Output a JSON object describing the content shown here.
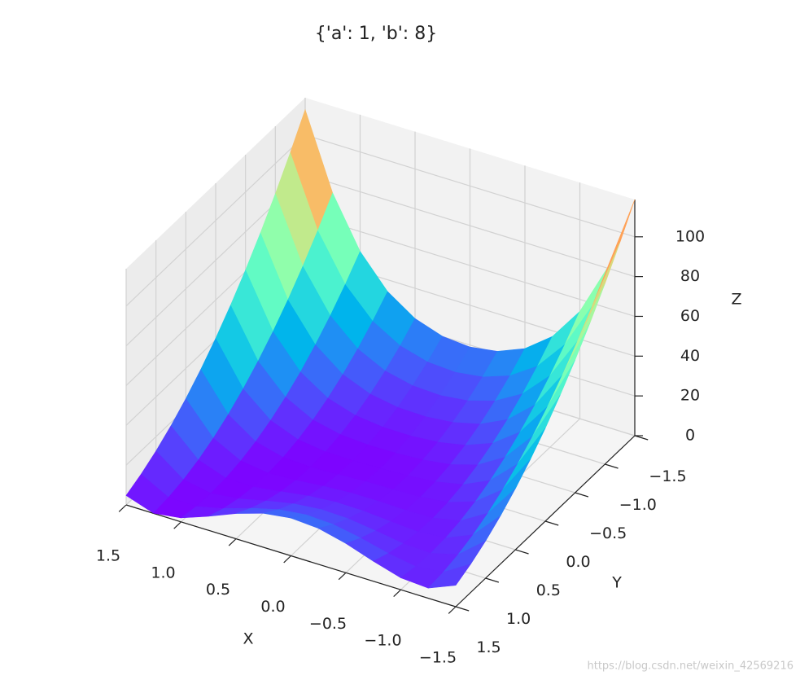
{
  "chart_data": {
    "type": "surface3d",
    "title": "{'a': 1, 'b': 8}",
    "xlabel": "X",
    "ylabel": "Y",
    "zlabel": "Z",
    "colormap": "rainbow",
    "grid": true,
    "x": [
      -1.5,
      -1.25,
      -1,
      -0.75,
      -0.5,
      -0.25,
      0,
      0.25,
      0.5,
      0.75,
      1,
      1.25,
      1.5
    ],
    "y": [
      -1.5,
      -1.25,
      -1,
      -0.75,
      -0.5,
      -0.25,
      0,
      0.25,
      0.5,
      0.75,
      1,
      1.25,
      1.5
    ],
    "z": [
      [
        118.75,
        104.25,
        90.75,
        78.25,
        66.75,
        56.25,
        46.75,
        38.25,
        30.75,
        24.25,
        18.75,
        14.25,
        10.75
      ],
      [
        80.09,
        68.34,
        57.59,
        47.84,
        39.09,
        31.34,
        24.59,
        18.84,
        14.09,
        10.34,
        7.59,
        5.84,
        5.09
      ],
      [
        54,
        44.5,
        36,
        28.5,
        22,
        16.5,
        12,
        8.5,
        6,
        4.5,
        4,
        4.5,
        6
      ],
      [
        37.09,
        29.34,
        22.59,
        16.84,
        12.09,
        8.34,
        5.59,
        3.84,
        3.09,
        3.34,
        4.59,
        6.84,
        10.09
      ],
      [
        26.75,
        20.25,
        14.75,
        10.25,
        6.75,
        4.25,
        2.75,
        2.25,
        2.75,
        4.25,
        6.75,
        10.25,
        14.75
      ],
      [
        21.09,
        15.34,
        10.59,
        6.84,
        4.09,
        2.34,
        1.59,
        1.84,
        3.09,
        5.34,
        8.59,
        12.84,
        18.09
      ],
      [
        19,
        13.5,
        9,
        5.5,
        3,
        1.5,
        1,
        1.5,
        3,
        5.5,
        9,
        13.5,
        19
      ],
      [
        20.09,
        14.34,
        9.59,
        5.84,
        3.09,
        1.34,
        0.59,
        0.84,
        2.09,
        4.34,
        7.59,
        11.84,
        17.09
      ],
      [
        24.75,
        18.25,
        12.75,
        8.25,
        4.75,
        2.25,
        0.75,
        0.25,
        0.75,
        2.25,
        4.75,
        8.25,
        12.75
      ],
      [
        34.09,
        26.34,
        19.59,
        13.84,
        9.09,
        5.34,
        2.59,
        0.84,
        0.09,
        0.34,
        1.59,
        3.84,
        7.09
      ],
      [
        50,
        40.5,
        32,
        24.5,
        18,
        12.5,
        8,
        4.5,
        2,
        0.5,
        0,
        0.5,
        2
      ],
      [
        75.09,
        63.34,
        52.59,
        42.84,
        34.09,
        26.34,
        19.59,
        13.84,
        9.09,
        5.34,
        2.59,
        0.84,
        0.09
      ],
      [
        112.75,
        98.25,
        84.75,
        72.25,
        60.75,
        50.25,
        40.75,
        32.25,
        24.75,
        18.25,
        12.75,
        8.25,
        4.75
      ]
    ],
    "xlim": [
      1.5,
      -1.5
    ],
    "ylim": [
      -1.5,
      1.5
    ],
    "zlim": [
      0,
      118.75
    ],
    "xticks": [
      1.5,
      {
        "value": 1,
        "label": "1.0"
      },
      0.5,
      {
        "value": 0,
        "label": "0.0"
      },
      {
        "value": -0.5,
        "label": "−0.5"
      },
      {
        "value": -1,
        "label": "−1.0"
      },
      {
        "value": -1.5,
        "label": "−1.5"
      }
    ],
    "yticks": [
      {
        "value": -1.5,
        "label": "−1.5"
      },
      {
        "value": -1,
        "label": "−1.0"
      },
      {
        "value": -0.5,
        "label": "−0.5"
      },
      {
        "value": 0,
        "label": "0.0"
      },
      0.5,
      {
        "value": 1,
        "label": "1.0"
      },
      1.5
    ],
    "zticks": [
      0,
      20,
      40,
      60,
      80,
      100
    ]
  },
  "watermark": "https://blog.csdn.net/weixin_42569216"
}
